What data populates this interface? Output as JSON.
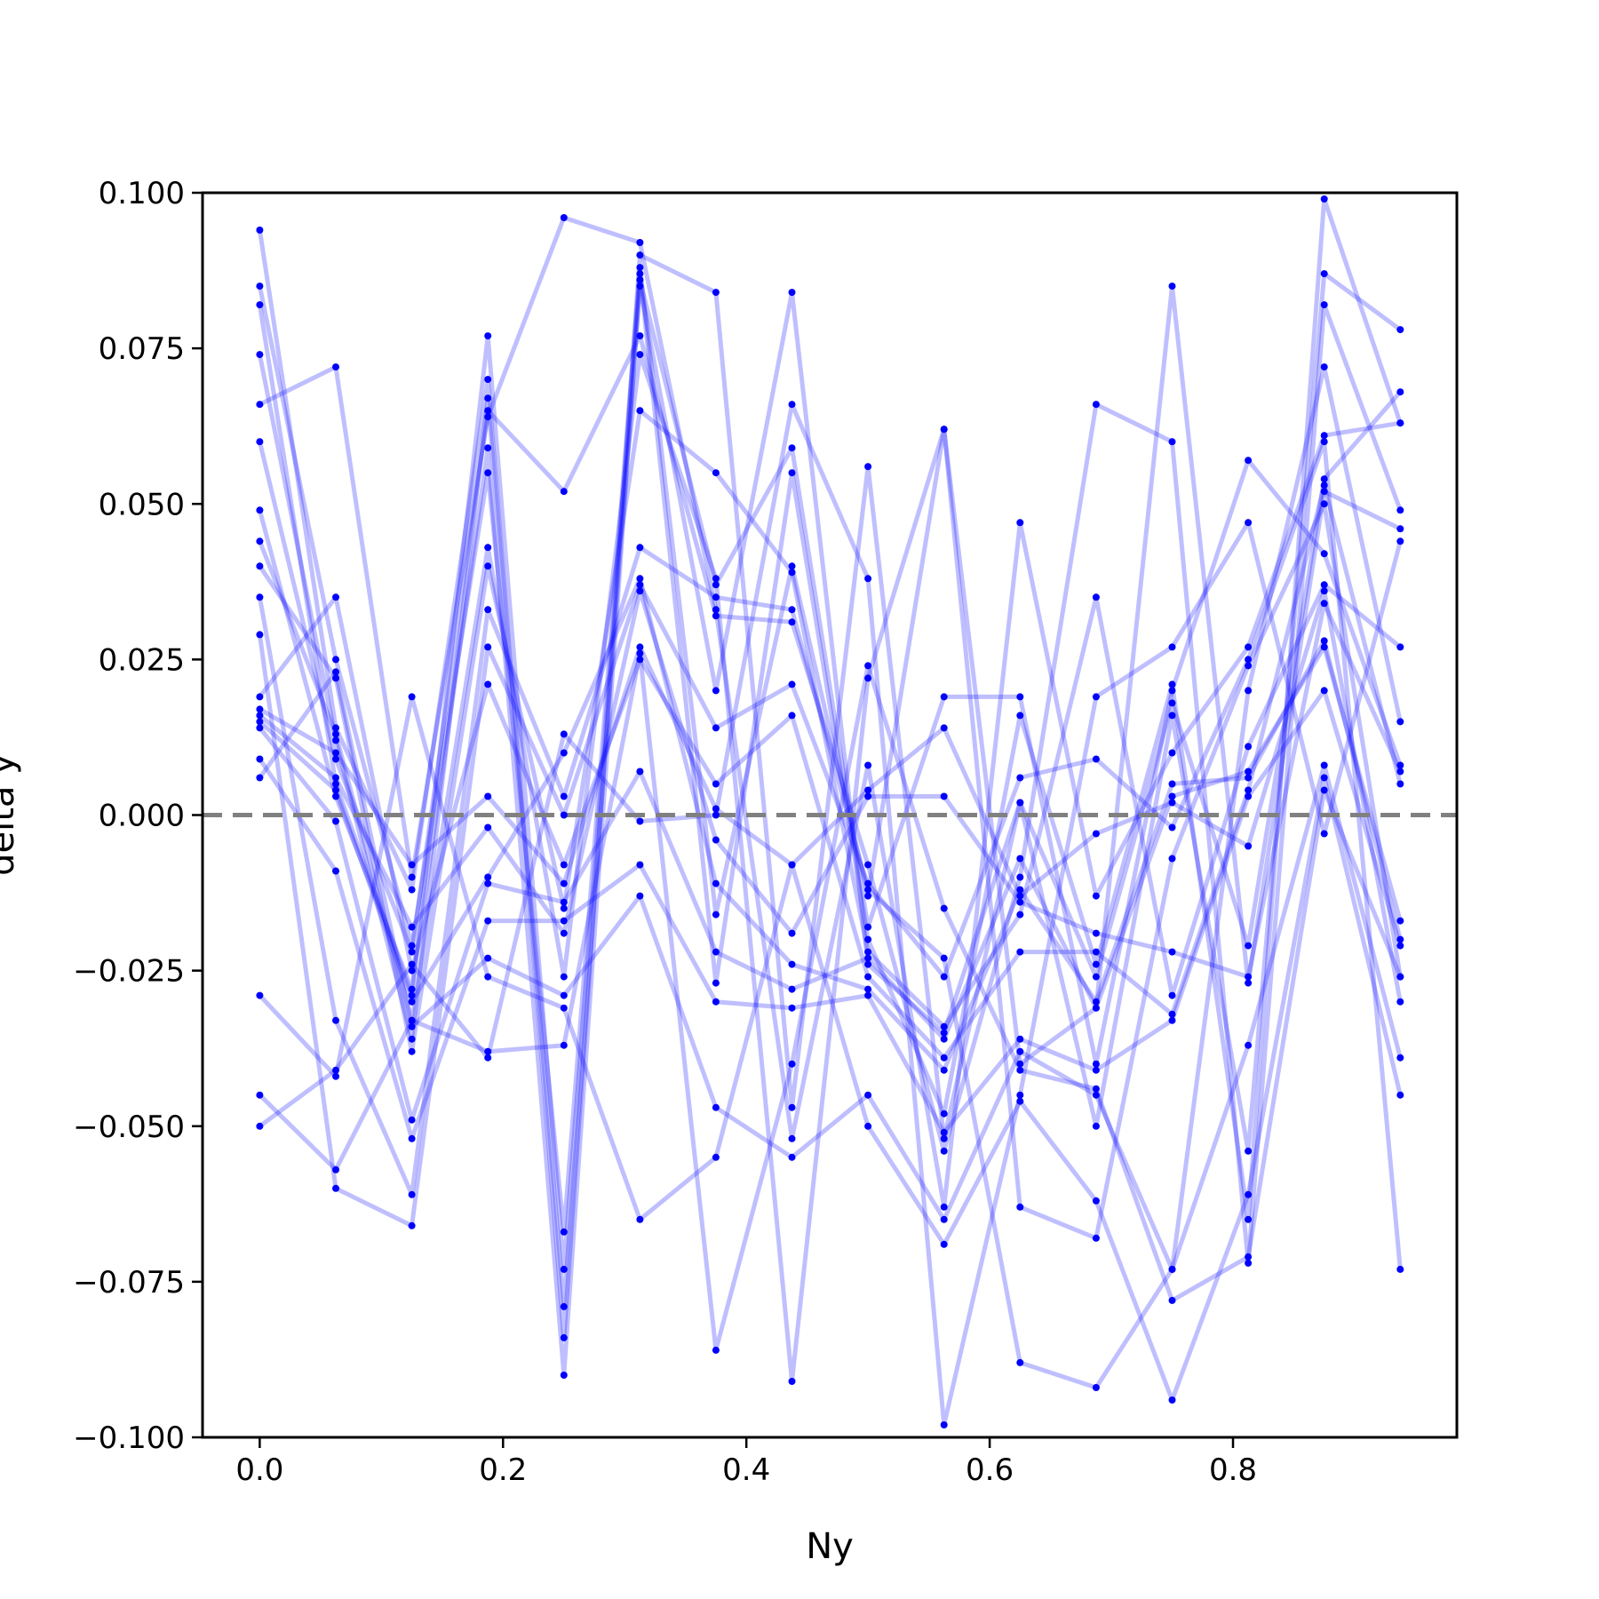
{
  "colors": {
    "series": "#0000ff",
    "reference_line": "#808080",
    "axes": "#000000"
  },
  "chart_data": {
    "type": "line",
    "title": "",
    "xlabel": "Ny",
    "ylabel": "delta y",
    "xlim": [
      -0.047,
      0.984
    ],
    "ylim": [
      -0.1,
      0.1
    ],
    "xticks": [
      0.0,
      0.2,
      0.4,
      0.6,
      0.8
    ],
    "xtick_labels": [
      "0.0",
      "0.2",
      "0.4",
      "0.6",
      "0.8"
    ],
    "yticks": [
      -0.1,
      -0.075,
      -0.05,
      -0.025,
      0.0,
      0.025,
      0.05,
      0.075,
      0.1
    ],
    "ytick_labels": [
      "−0.100",
      "−0.075",
      "−0.050",
      "−0.025",
      "0.000",
      "0.025",
      "0.050",
      "0.075",
      "0.100"
    ],
    "reference_line": {
      "y": 0.0,
      "style": "dashed"
    },
    "grid": false,
    "legend": "none",
    "x": [
      0.0,
      0.0625,
      0.125,
      0.1875,
      0.25,
      0.3125,
      0.375,
      0.4375,
      0.5,
      0.5625,
      0.625,
      0.6875,
      0.75,
      0.8125,
      0.875,
      0.9375
    ],
    "series": [
      {
        "values": [
          0.094,
          0.014,
          -0.012,
          0.07,
          -0.084,
          0.09,
          0.084,
          -0.047,
          0.056,
          -0.052,
          0.002,
          -0.026,
          0.018,
          -0.021,
          0.054,
          0.068
        ]
      },
      {
        "values": [
          0.085,
          0.025,
          -0.021,
          0.055,
          -0.067,
          0.088,
          -0.016,
          0.04,
          -0.013,
          0.062,
          -0.04,
          -0.031,
          0.085,
          -0.027,
          0.052,
          0.046
        ]
      },
      {
        "values": [
          0.082,
          0.005,
          -0.029,
          0.077,
          -0.073,
          0.087,
          -0.027,
          0.055,
          -0.02,
          -0.048,
          0.016,
          -0.024,
          0.021,
          -0.065,
          0.099,
          0.063
        ]
      },
      {
        "values": [
          0.074,
          0.012,
          -0.036,
          0.067,
          -0.079,
          0.085,
          0.02,
          0.084,
          -0.024,
          -0.035,
          0.002,
          -0.05,
          0.016,
          -0.054,
          0.087,
          0.078
        ]
      },
      {
        "values": [
          0.066,
          0.072,
          -0.01,
          0.064,
          0.096,
          0.092,
          0.033,
          -0.052,
          0.008,
          -0.063,
          0.047,
          -0.013,
          0.01,
          0.027,
          0.061,
          0.063
        ]
      },
      {
        "values": [
          0.06,
          0.009,
          -0.022,
          0.065,
          0.052,
          0.077,
          0.032,
          0.031,
          -0.008,
          -0.054,
          -0.01,
          0.066,
          0.06,
          -0.072,
          0.082,
          0.049
        ]
      },
      {
        "values": [
          0.049,
          0.003,
          -0.028,
          0.059,
          -0.09,
          0.086,
          0.037,
          0.059,
          -0.018,
          0.019,
          0.019,
          -0.04,
          0.02,
          0.057,
          0.042,
          0.008
        ]
      },
      {
        "values": [
          0.044,
          0.013,
          -0.033,
          0.043,
          -0.026,
          0.074,
          0.038,
          -0.091,
          0.022,
          0.062,
          -0.063,
          -0.068,
          -0.007,
          0.024,
          0.05,
          -0.026
        ]
      },
      {
        "values": [
          0.04,
          0.022,
          -0.038,
          0.04,
          -0.015,
          0.065,
          0.055,
          0.039,
          -0.022,
          -0.034,
          -0.016,
          0.035,
          -0.029,
          0.011,
          0.037,
          0.027
        ]
      },
      {
        "values": [
          0.035,
          -0.033,
          -0.061,
          0.033,
          0.003,
          0.043,
          0.035,
          0.033,
          -0.012,
          -0.023,
          -0.088,
          -0.092,
          -0.073,
          0.02,
          0.072,
          0.015
        ]
      },
      {
        "values": [
          0.029,
          -0.06,
          -0.066,
          0.027,
          0.0,
          0.037,
          0.014,
          0.021,
          -0.011,
          -0.026,
          0.006,
          0.009,
          -0.002,
          0.025,
          0.06,
          -0.073
        ]
      },
      {
        "values": [
          0.019,
          0.035,
          -0.025,
          0.021,
          -0.008,
          0.025,
          0.005,
          0.016,
          -0.026,
          -0.039,
          -0.022,
          -0.022,
          -0.032,
          0.004,
          0.053,
          0.005
        ]
      },
      {
        "values": [
          0.017,
          0.01,
          -0.008,
          0.003,
          -0.011,
          0.027,
          0.001,
          -0.008,
          0.004,
          0.014,
          -0.013,
          -0.003,
          0.002,
          -0.005,
          0.036,
          -0.03
        ]
      },
      {
        "values": [
          0.016,
          0.006,
          -0.018,
          -0.002,
          -0.019,
          0.036,
          -0.004,
          -0.019,
          0.003,
          0.003,
          -0.014,
          -0.019,
          -0.022,
          -0.026,
          0.034,
          0.007
        ]
      },
      {
        "values": [
          0.015,
          0.004,
          -0.03,
          -0.01,
          0.01,
          0.038,
          -0.011,
          -0.024,
          -0.028,
          -0.041,
          -0.012,
          -0.03,
          0.005,
          0.006,
          0.028,
          -0.02
        ]
      },
      {
        "values": [
          0.014,
          -0.001,
          -0.049,
          -0.011,
          -0.014,
          0.007,
          -0.022,
          -0.028,
          -0.023,
          -0.036,
          -0.007,
          -0.031,
          0.003,
          0.007,
          0.027,
          -0.017
        ]
      },
      {
        "values": [
          0.009,
          -0.009,
          -0.052,
          -0.017,
          -0.017,
          -0.008,
          -0.03,
          -0.031,
          -0.029,
          -0.051,
          -0.036,
          -0.041,
          -0.033,
          0.003,
          0.02,
          -0.021
        ]
      },
      {
        "values": [
          0.006,
          0.023,
          -0.034,
          -0.023,
          -0.029,
          -0.013,
          -0.047,
          -0.055,
          -0.045,
          -0.065,
          -0.038,
          -0.045,
          -0.073,
          -0.037,
          0.008,
          -0.039
        ]
      },
      {
        "values": [
          -0.029,
          -0.042,
          0.019,
          -0.026,
          -0.031,
          -0.065,
          -0.055,
          -0.008,
          -0.05,
          -0.069,
          -0.046,
          -0.062,
          -0.094,
          -0.061,
          0.006,
          -0.045
        ]
      },
      {
        "values": [
          -0.045,
          -0.057,
          -0.033,
          -0.038,
          -0.037,
          0.026,
          -0.086,
          -0.04,
          0.024,
          -0.015,
          -0.041,
          -0.044,
          -0.078,
          -0.071,
          0.004,
          -0.026
        ]
      },
      {
        "values": [
          -0.05,
          -0.041,
          -0.024,
          -0.039,
          0.013,
          -0.001,
          0.0,
          0.066,
          0.038,
          -0.098,
          -0.045,
          0.019,
          0.027,
          0.047,
          -0.003,
          0.044
        ]
      }
    ]
  }
}
